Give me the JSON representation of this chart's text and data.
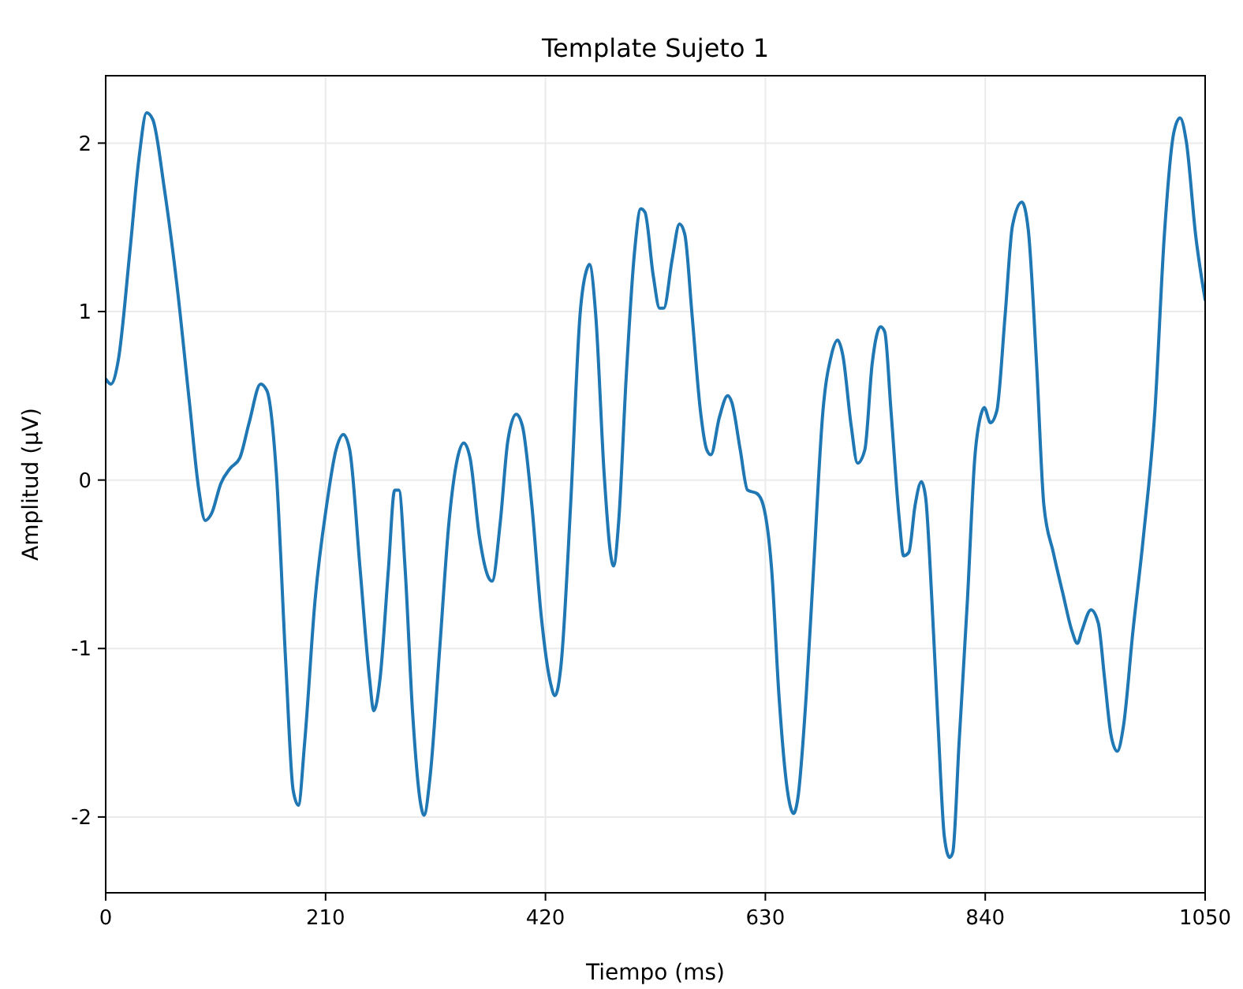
{
  "chart_data": {
    "type": "line",
    "title": "Template Sujeto 1",
    "xlabel": "Tiempo (ms)",
    "ylabel": "Amplitud (μV)",
    "xlim": [
      0,
      1050
    ],
    "ylim": [
      -2.45,
      2.4
    ],
    "xticks": [
      0,
      210,
      420,
      630,
      840,
      1050
    ],
    "yticks": [
      -2,
      -1,
      0,
      1,
      2
    ],
    "grid": true,
    "series": [
      {
        "color": "#1f77b4",
        "x": [
          0,
          5,
          12,
          23,
          32,
          39,
          45,
          56,
          68,
          80,
          89,
          95,
          101,
          110,
          119,
          128,
          137,
          148,
          154,
          163,
          172,
          179,
          184,
          190,
          200,
          211,
          220,
          227,
          233,
          243,
          252,
          256,
          262,
          270,
          276,
          280,
          286,
          293,
          301,
          304,
          310,
          319,
          328,
          336,
          342,
          348,
          357,
          365,
          369,
          377,
          384,
          392,
          398,
          407,
          416,
          425,
          429,
          435,
          444,
          453,
          460,
          462,
          468,
          476,
          482,
          485,
          490,
          497,
          505,
          511,
          515,
          523,
          529,
          533,
          541,
          548,
          553,
          560,
          568,
          574,
          578,
          586,
          594,
          598,
          606,
          613,
          622,
          628,
          636,
          643,
          651,
          657,
          661,
          669,
          676,
          685,
          693,
          699,
          704,
          712,
          718,
          725,
          732,
          740,
          744,
          750,
          758,
          762,
          767,
          773,
          779,
          783,
          789,
          795,
          801,
          806,
          809,
          815,
          823,
          830,
          836,
          839,
          845,
          851,
          859,
          866,
          875,
          881,
          889,
          896,
          905,
          914,
          923,
          928,
          932,
          941,
          948,
          954,
          960,
          966,
          972,
          981,
          991,
          1002,
          1011,
          1020,
          1026,
          1032,
          1041,
          1050
        ],
        "values": [
          0.6,
          0.57,
          0.71,
          1.35,
          1.92,
          2.18,
          2.14,
          1.73,
          1.16,
          0.46,
          -0.06,
          -0.24,
          -0.2,
          -0.02,
          0.07,
          0.13,
          0.34,
          0.57,
          0.53,
          0.04,
          -1.09,
          -1.84,
          -1.93,
          -1.56,
          -0.71,
          -0.15,
          0.18,
          0.27,
          0.18,
          -0.53,
          -1.18,
          -1.37,
          -1.18,
          -0.53,
          -0.06,
          -0.06,
          -0.53,
          -1.37,
          -1.93,
          -1.99,
          -1.75,
          -1.0,
          -0.24,
          0.13,
          0.22,
          0.13,
          -0.34,
          -0.57,
          -0.6,
          -0.24,
          0.23,
          0.39,
          0.32,
          -0.15,
          -0.81,
          -1.21,
          -1.28,
          -1.09,
          -0.15,
          0.98,
          1.26,
          1.28,
          0.98,
          0.04,
          -0.43,
          -0.51,
          -0.24,
          0.6,
          1.35,
          1.61,
          1.59,
          1.21,
          1.02,
          1.02,
          1.31,
          1.52,
          1.46,
          0.98,
          0.41,
          0.18,
          0.15,
          0.37,
          0.5,
          0.46,
          0.18,
          -0.06,
          -0.08,
          -0.15,
          -0.53,
          -1.28,
          -1.84,
          -1.98,
          -1.89,
          -1.28,
          -0.53,
          0.41,
          0.74,
          0.83,
          0.74,
          0.32,
          0.1,
          0.18,
          0.69,
          0.91,
          0.88,
          0.41,
          -0.24,
          -0.45,
          -0.43,
          -0.15,
          -0.01,
          -0.1,
          -0.71,
          -1.46,
          -2.12,
          -2.24,
          -2.21,
          -1.56,
          -0.71,
          0.13,
          0.39,
          0.43,
          0.34,
          0.41,
          0.98,
          1.51,
          1.65,
          1.49,
          0.69,
          -0.15,
          -0.43,
          -0.67,
          -0.9,
          -0.97,
          -0.9,
          -0.77,
          -0.85,
          -1.18,
          -1.51,
          -1.61,
          -1.46,
          -0.9,
          -0.34,
          0.41,
          1.45,
          2.06,
          2.15,
          2.01,
          1.45,
          1.07
        ]
      }
    ]
  }
}
